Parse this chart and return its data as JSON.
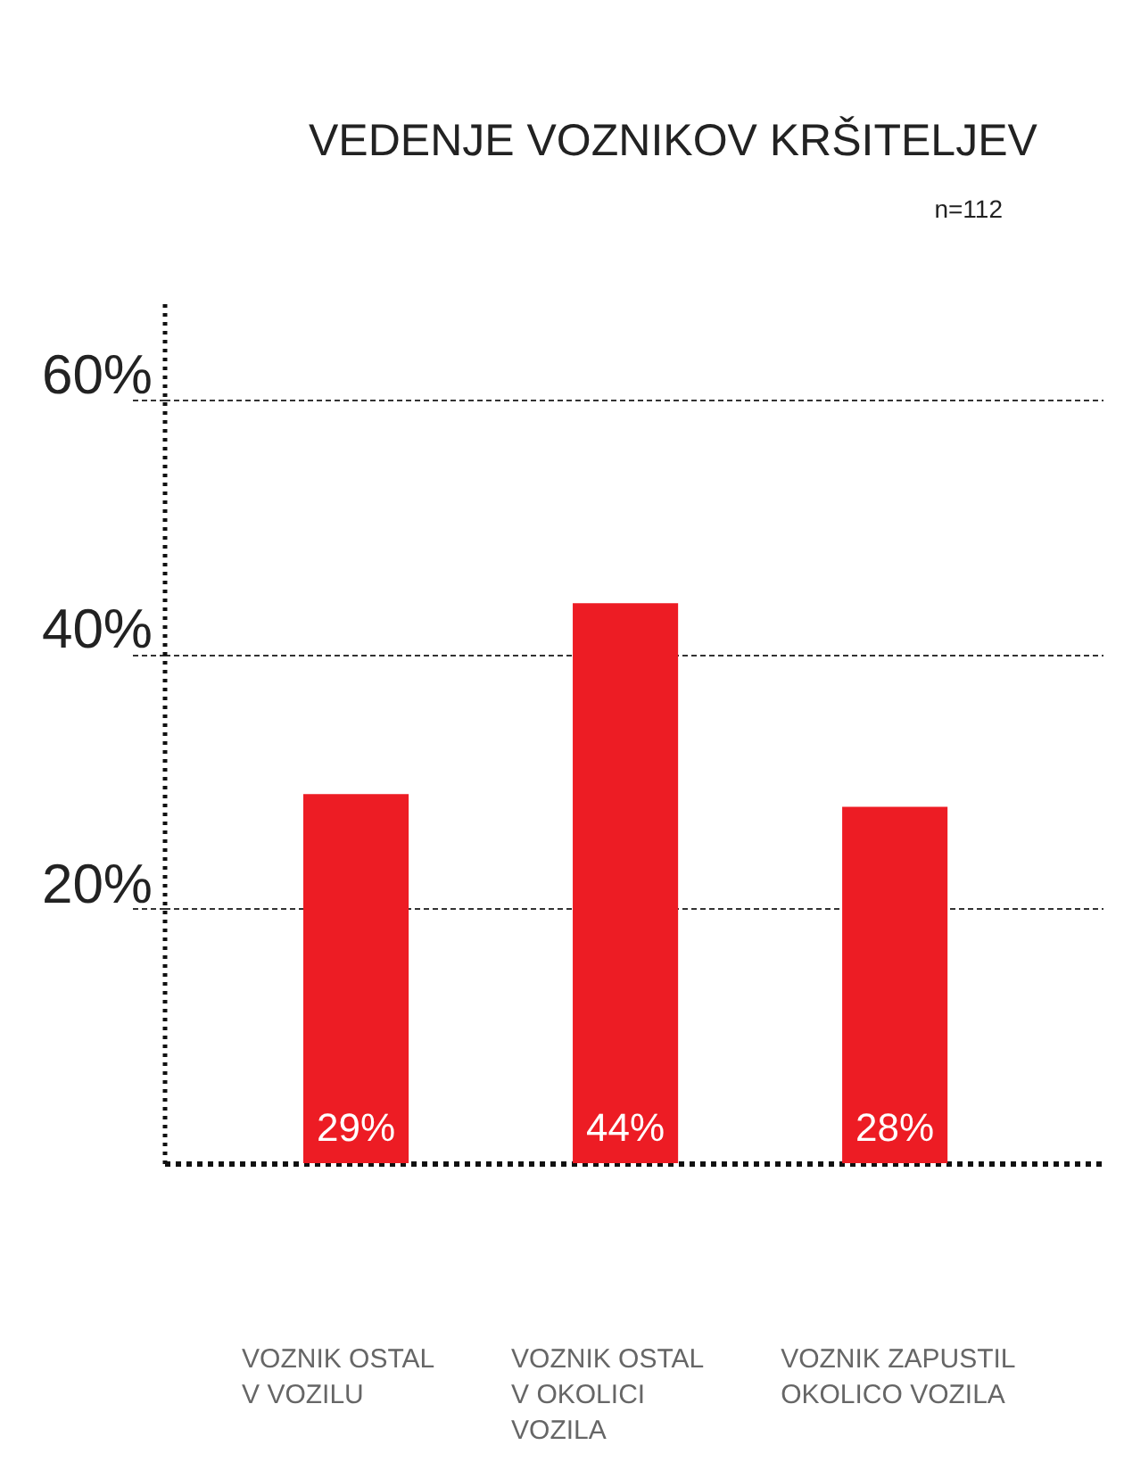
{
  "chart_data": {
    "type": "bar",
    "title": "VEDENJE VOZNIKOV KRŠITELJEV",
    "annotations": [
      "n=112"
    ],
    "categories": [
      "VOZNIK OSTAL\nV VOZILU",
      "VOZNIK OSTAL\nV OKOLICI\nVOZILA",
      "VOZNIK ZAPUSTIL\nOKOLICO VOZILA"
    ],
    "values": [
      29,
      44,
      28
    ],
    "color": "#ed1c24",
    "value_labels": [
      "29%",
      "44%",
      "28%"
    ],
    "ylim": [
      0,
      68
    ],
    "yticks": [
      {
        "value": 20,
        "label": "20%"
      },
      {
        "value": 40,
        "label": "40%"
      },
      {
        "value": 60,
        "label": "60%"
      }
    ],
    "grid": "y"
  }
}
